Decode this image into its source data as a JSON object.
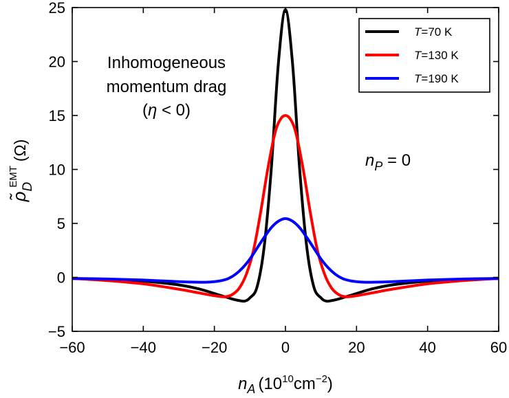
{
  "chart_data": {
    "type": "line",
    "title": "",
    "xlabel": {
      "var": "n",
      "sub": "A",
      "unit_open": "(10",
      "unit_exp": "10",
      "unit_mid": "cm",
      "unit_exp2": "−2",
      "unit_close": ")"
    },
    "ylabel": {
      "var": "ρ̃",
      "sub": "D",
      "sup": "EMT",
      "unit": "(Ω)"
    },
    "xlim": [
      -60,
      60
    ],
    "ylim": [
      -5,
      25
    ],
    "xticks": [
      -60,
      -40,
      -20,
      0,
      20,
      40,
      60
    ],
    "xtick_labels": [
      "−60",
      "−40",
      "−20",
      "0",
      "20",
      "40",
      "60"
    ],
    "yticks": [
      -5,
      0,
      5,
      10,
      15,
      20,
      25
    ],
    "ytick_labels": [
      "−5",
      "0",
      "5",
      "10",
      "15",
      "20",
      "25"
    ],
    "grid": false,
    "legend_position": "top-right",
    "series": [
      {
        "name": "T=70 K",
        "label_var": "T",
        "label_rest": "=70 K",
        "color": "#000000",
        "x": [
          -60,
          -50,
          -40,
          -30,
          -24,
          -20,
          -17,
          -15,
          -13,
          -11.5,
          -10,
          -8,
          -6,
          -4,
          -2,
          0,
          2,
          4,
          6,
          8,
          10,
          11.5,
          13,
          15,
          17,
          20,
          24,
          30,
          40,
          50,
          60
        ],
        "y": [
          -0.1,
          -0.2,
          -0.35,
          -0.7,
          -1.1,
          -1.5,
          -1.8,
          -2.0,
          -2.15,
          -2.2,
          -1.9,
          -0.9,
          2.8,
          10.0,
          19.8,
          24.8,
          19.8,
          10.0,
          2.8,
          -0.9,
          -1.9,
          -2.2,
          -2.15,
          -2.0,
          -1.8,
          -1.5,
          -1.1,
          -0.7,
          -0.35,
          -0.2,
          -0.1
        ]
      },
      {
        "name": "T=130 K",
        "label_var": "T",
        "label_rest": "=130 K",
        "color": "#ff0000",
        "x": [
          -60,
          -50,
          -40,
          -30,
          -25,
          -20,
          -17,
          -15,
          -13,
          -11,
          -9,
          -7,
          -5,
          -3,
          -1.5,
          0,
          1.5,
          3,
          5,
          7,
          9,
          11,
          13,
          15,
          17,
          20,
          25,
          30,
          40,
          50,
          60
        ],
        "y": [
          -0.1,
          -0.3,
          -0.6,
          -1.1,
          -1.4,
          -1.7,
          -1.8,
          -1.6,
          -1.0,
          0.3,
          2.5,
          6.0,
          10.0,
          13.3,
          14.6,
          15.0,
          14.6,
          13.3,
          10.0,
          6.0,
          2.5,
          0.3,
          -1.0,
          -1.6,
          -1.8,
          -1.7,
          -1.4,
          -1.1,
          -0.6,
          -0.3,
          -0.1
        ]
      },
      {
        "name": "T=190 K",
        "label_var": "T",
        "label_rest": "=190 K",
        "color": "#0000ff",
        "x": [
          -60,
          -50,
          -40,
          -30,
          -25,
          -22,
          -20,
          -18,
          -16,
          -14,
          -12,
          -10,
          -8,
          -6,
          -4,
          -2,
          0,
          2,
          4,
          6,
          8,
          10,
          12,
          14,
          16,
          18,
          20,
          22,
          25,
          30,
          40,
          50,
          60
        ],
        "y": [
          -0.1,
          -0.15,
          -0.25,
          -0.4,
          -0.45,
          -0.45,
          -0.4,
          -0.3,
          -0.1,
          0.3,
          0.9,
          1.7,
          2.7,
          3.7,
          4.6,
          5.2,
          5.45,
          5.2,
          4.6,
          3.7,
          2.7,
          1.7,
          0.9,
          0.3,
          -0.1,
          -0.3,
          -0.4,
          -0.45,
          -0.45,
          -0.4,
          -0.25,
          -0.15,
          -0.1
        ]
      }
    ],
    "annotations": [
      {
        "id": "drag-line1",
        "text": "Inhomogeneous"
      },
      {
        "id": "drag-line2",
        "text": "momentum drag"
      }
    ],
    "annotation_eta": {
      "open": "(",
      "var": "η",
      "rest": " < 0)"
    },
    "annotation_np": {
      "var": "n",
      "sub": "P",
      "rest": " = 0"
    }
  }
}
